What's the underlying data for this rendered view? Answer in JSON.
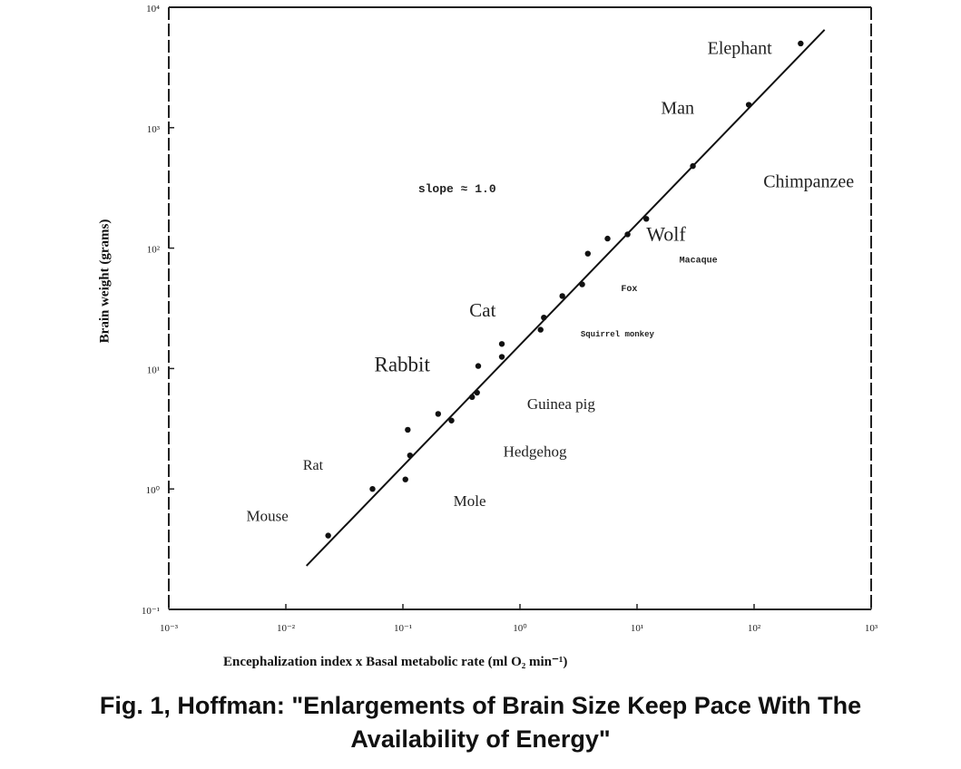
{
  "chart_data": {
    "type": "scatter",
    "xlabel": "Encephalization index x Basal metabolic rate (ml O₂ min⁻¹)",
    "ylabel": "Brain weight (grams)",
    "x_scale": "log",
    "y_scale": "log",
    "xlim": [
      0.001,
      1000
    ],
    "ylim": [
      0.1,
      10000
    ],
    "x_ticks": [
      "10⁻³",
      "10⁻²",
      "10⁻¹",
      "10⁰",
      "10¹",
      "10²",
      "10³"
    ],
    "y_ticks": [
      "10⁻¹",
      "10⁰",
      "10¹",
      "10²",
      "10³",
      "10⁴"
    ],
    "grid": false,
    "points": [
      {
        "x": 0.023,
        "y": 0.41
      },
      {
        "x": 0.055,
        "y": 1.0
      },
      {
        "x": 0.105,
        "y": 1.2
      },
      {
        "x": 0.115,
        "y": 1.9
      },
      {
        "x": 0.11,
        "y": 3.1
      },
      {
        "x": 0.2,
        "y": 4.2
      },
      {
        "x": 0.26,
        "y": 3.7
      },
      {
        "x": 0.39,
        "y": 5.8
      },
      {
        "x": 0.43,
        "y": 6.3
      },
      {
        "x": 0.44,
        "y": 10.5
      },
      {
        "x": 0.7,
        "y": 12.5
      },
      {
        "x": 0.7,
        "y": 16.0
      },
      {
        "x": 1.5,
        "y": 21.0
      },
      {
        "x": 1.6,
        "y": 26.5
      },
      {
        "x": 2.3,
        "y": 40.0
      },
      {
        "x": 3.4,
        "y": 50.0
      },
      {
        "x": 3.8,
        "y": 90.0
      },
      {
        "x": 5.6,
        "y": 120.0
      },
      {
        "x": 8.3,
        "y": 130.0
      },
      {
        "x": 12.0,
        "y": 175.0
      },
      {
        "x": 30.0,
        "y": 480.0
      },
      {
        "x": 90.0,
        "y": 1550.0
      },
      {
        "x": 250.0,
        "y": 5000.0
      }
    ],
    "fit_line": {
      "x": [
        0.015,
        400.0
      ],
      "y": [
        0.23,
        6500.0
      ]
    },
    "annotations": [
      {
        "text": "Elephant",
        "x": 40.0,
        "y": 4100.0
      },
      {
        "text": "Man",
        "x": 16.0,
        "y": 1300.0
      },
      {
        "text": "Chimpanzee",
        "x": 120.0,
        "y": 320.0
      },
      {
        "text": "Wolf",
        "x": 12.0,
        "y": 115.0
      },
      {
        "text": "Cat",
        "x": 0.37,
        "y": 27.0
      },
      {
        "text": "Rabbit",
        "x": 0.057,
        "y": 9.5
      },
      {
        "text": "Guinea pig",
        "x": 1.15,
        "y": 4.6
      },
      {
        "text": "Hedgehog",
        "x": 0.72,
        "y": 1.85
      },
      {
        "text": "Rat",
        "x": 0.014,
        "y": 1.45
      },
      {
        "text": "Mole",
        "x": 0.27,
        "y": 0.72
      },
      {
        "text": "Mouse",
        "x": 0.0046,
        "y": 0.54
      }
    ],
    "handwritten": [
      {
        "text": "slope ≈ 1.0",
        "x": 0.135,
        "y": 290.0
      },
      {
        "text": "Macaque",
        "x": 23.0,
        "y": 76.0
      },
      {
        "text": "Fox",
        "x": 7.3,
        "y": 44.0
      },
      {
        "text": "Squirrel monkey",
        "x": 3.3,
        "y": 18.5
      }
    ]
  },
  "caption": {
    "line1": "Fig. 1,   Hoffman: \"Enlargements of Brain Size Keep Pace With The",
    "line2": "Availability of Energy\""
  }
}
